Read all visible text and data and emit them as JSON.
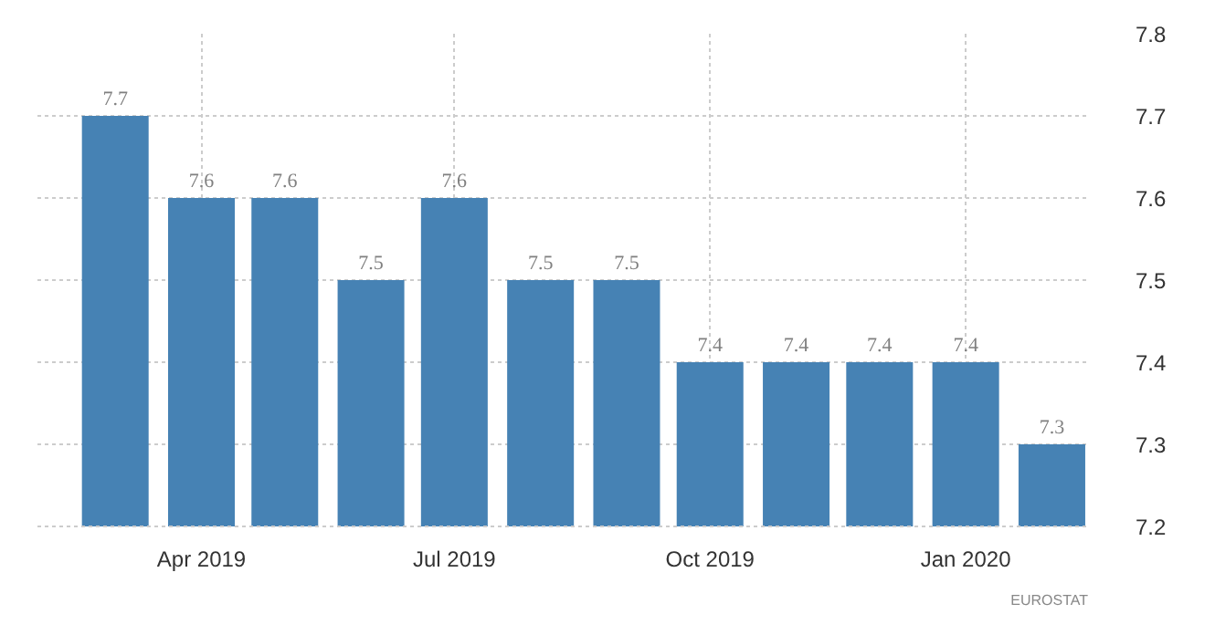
{
  "chart_data": {
    "type": "bar",
    "x": [
      "2019-03",
      "2019-04",
      "2019-05",
      "2019-06",
      "2019-07",
      "2019-08",
      "2019-09",
      "2019-10",
      "2019-11",
      "2019-12",
      "2020-01",
      "2020-02"
    ],
    "values": [
      7.7,
      7.6,
      7.6,
      7.5,
      7.6,
      7.5,
      7.5,
      7.4,
      7.4,
      7.4,
      7.4,
      7.3
    ],
    "color": "#4682b4",
    "xlim": [
      "2019-02-01",
      "2020-02-14"
    ],
    "xticks": [
      {
        "value": "2019-04",
        "label": "Apr 2019"
      },
      {
        "value": "2019-07",
        "label": "Jul 2019"
      },
      {
        "value": "2019-10",
        "label": "Oct 2019"
      },
      {
        "value": "2020-01",
        "label": "Jan 2020"
      }
    ],
    "ylim": [
      7.2,
      7.8
    ],
    "yticks": [
      7.2,
      7.3,
      7.4,
      7.5,
      7.6,
      7.7,
      7.8
    ],
    "grid": true,
    "data_labels": true,
    "annotations": [
      "EUROSTAT"
    ]
  }
}
